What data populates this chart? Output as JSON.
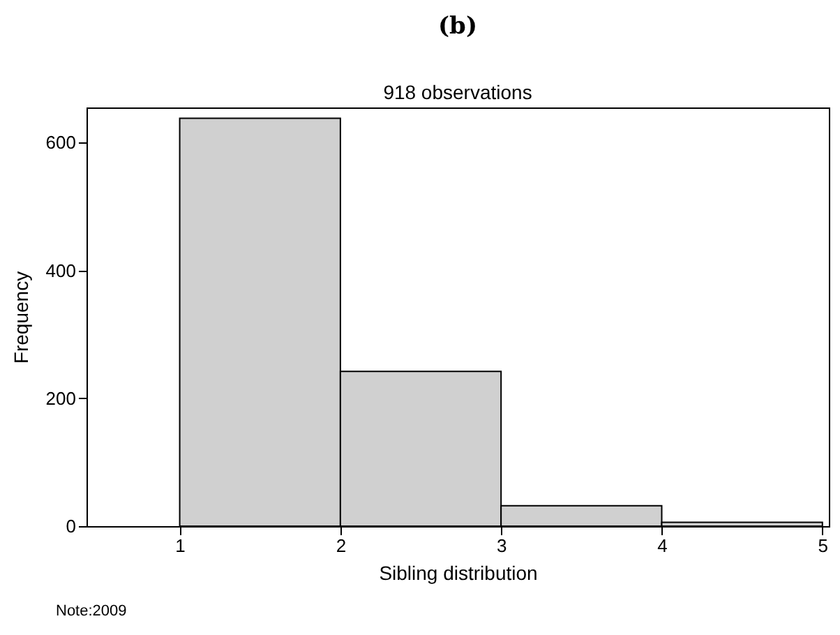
{
  "chart_data": {
    "type": "histogram",
    "title": "(b)",
    "subtitle": "918 observations",
    "xlabel": "Sibling distribution",
    "ylabel": "Frequency",
    "bins": [
      1,
      2,
      3,
      4,
      5
    ],
    "values": [
      638,
      242,
      32,
      6
    ],
    "color": "#d0d0d0",
    "xlim": [
      0.42,
      5.04
    ],
    "xticks": [
      1,
      2,
      3,
      4,
      5
    ],
    "ylim": [
      0,
      655
    ],
    "yticks": [
      0,
      200,
      400,
      600
    ],
    "grid": false,
    "annotations": [
      "Note:2009"
    ]
  }
}
